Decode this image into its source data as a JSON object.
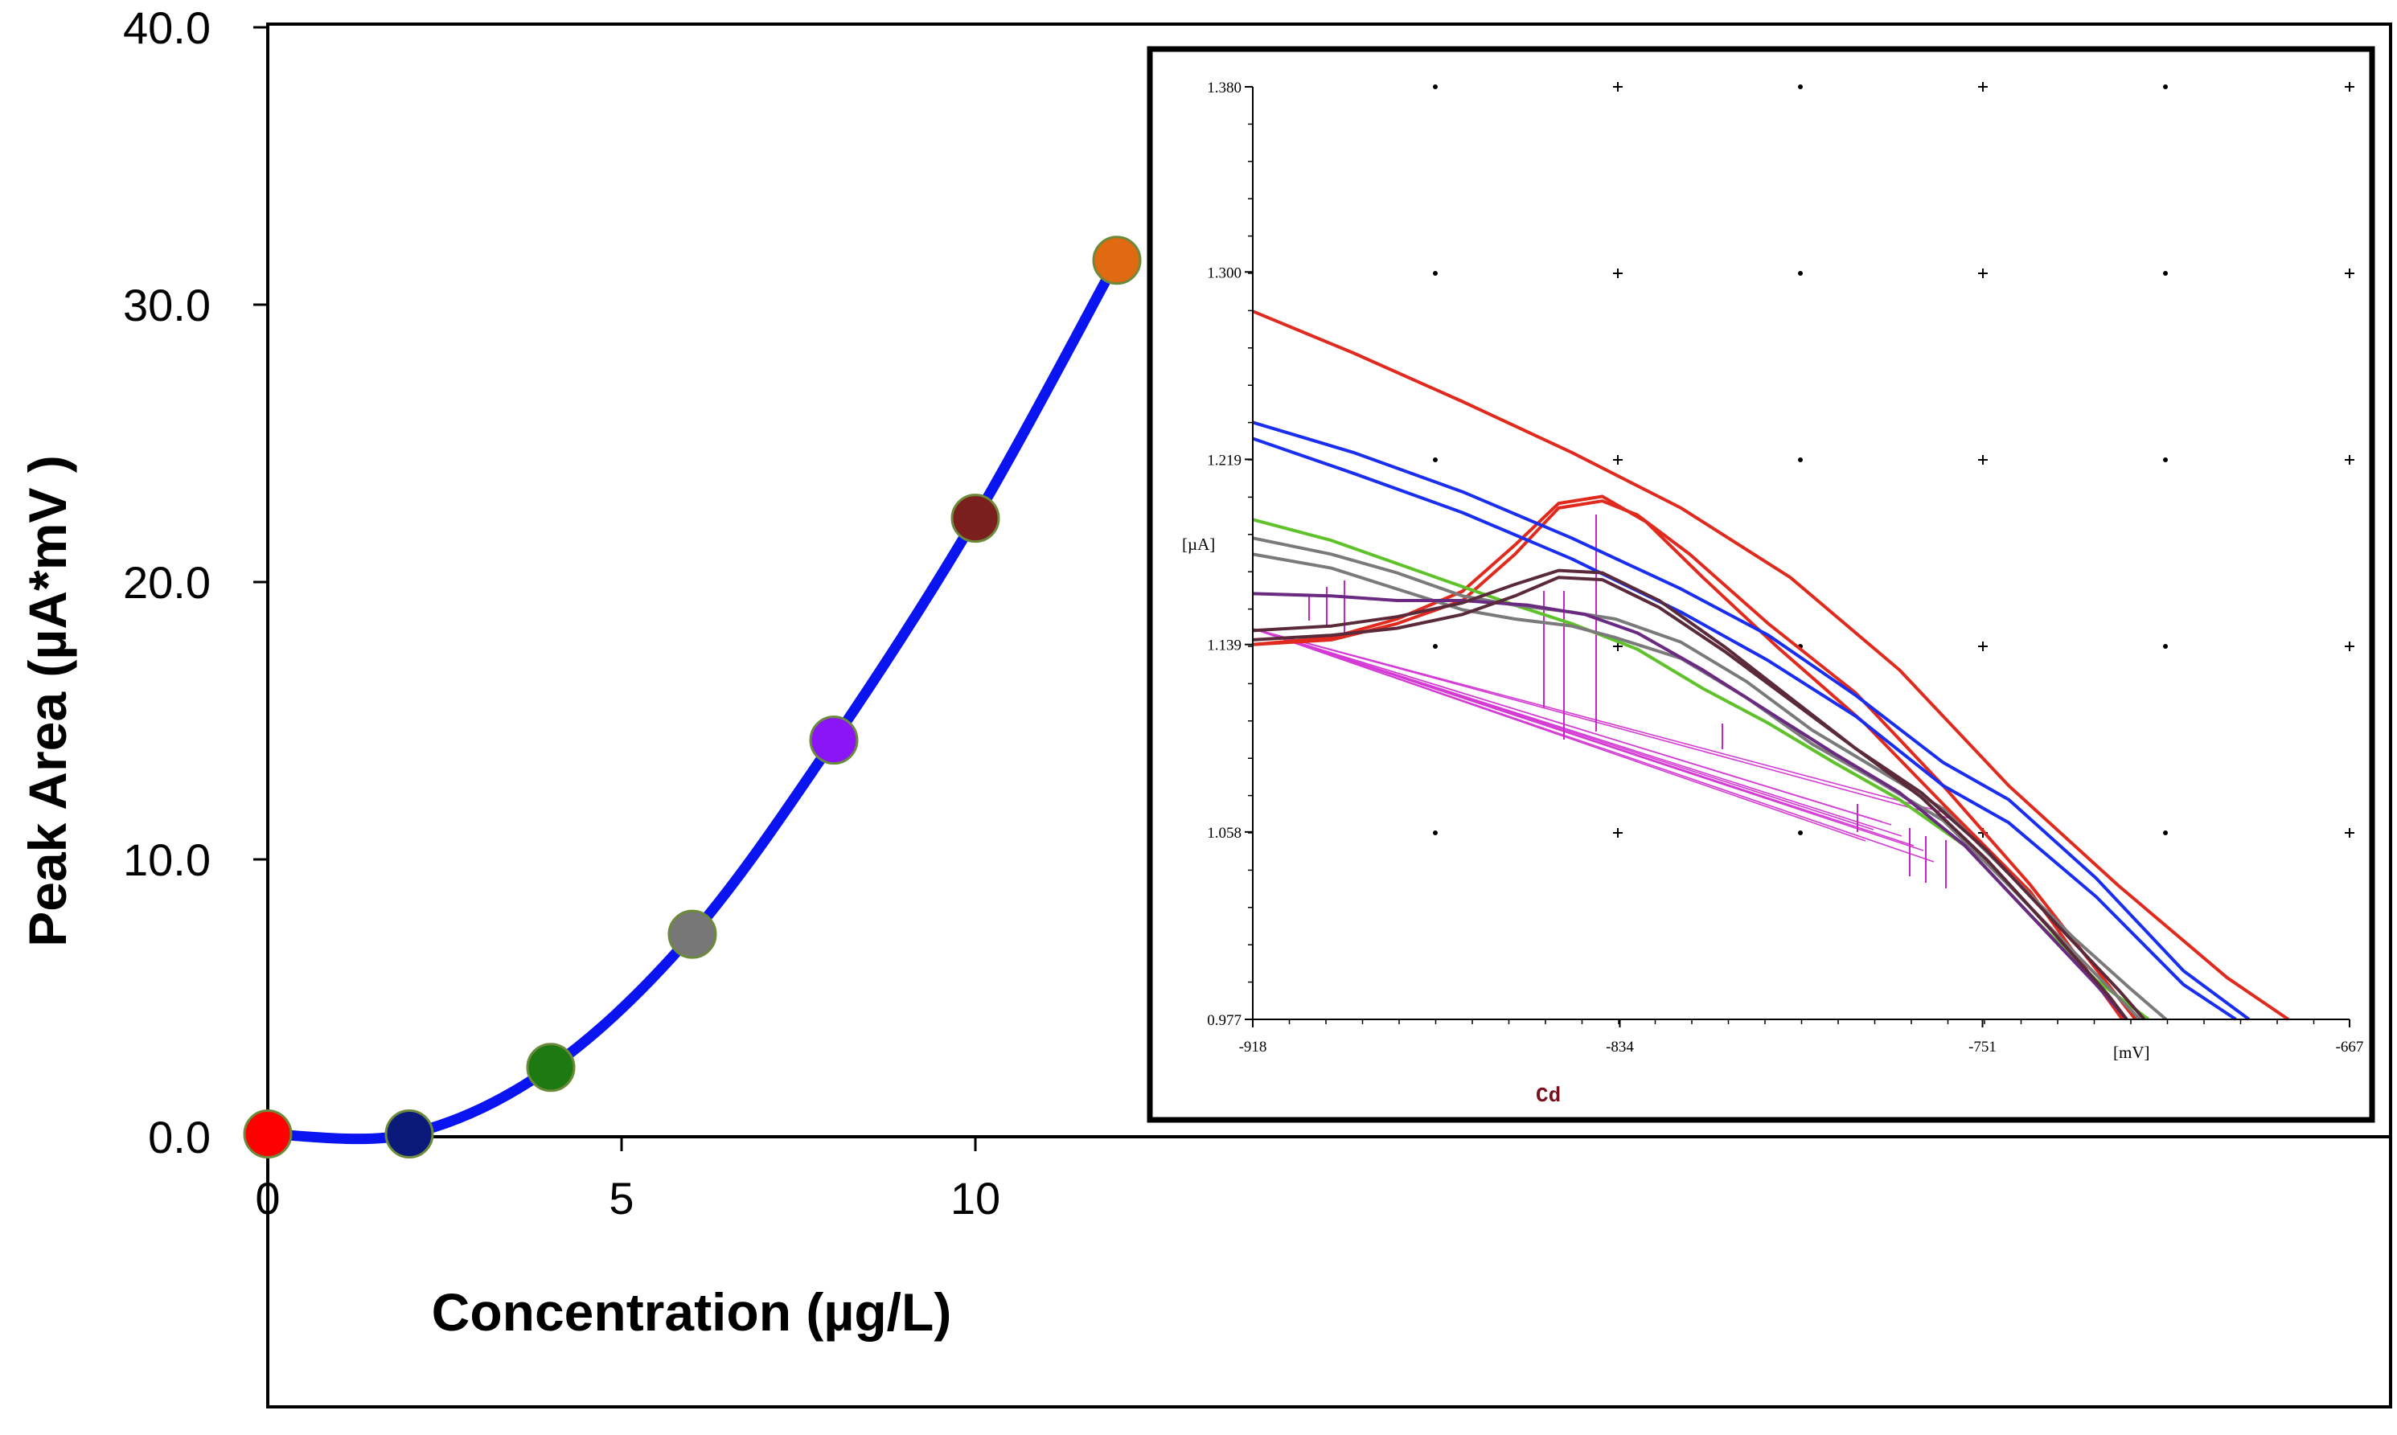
{
  "chart_data": [
    {
      "type": "line",
      "title": "",
      "xlabel": "Concentration (µg/L)",
      "ylabel": "Peak Area (µA*mV )",
      "xlim": [
        0,
        25
      ],
      "ylim": [
        0,
        40
      ],
      "x_ticks": [
        "0",
        "5",
        "10"
      ],
      "y_ticks": [
        "0.0",
        "10.0",
        "20.0",
        "30.0",
        "40.0"
      ],
      "grid": false,
      "legend": "none",
      "line_color": "#0a14f0",
      "points": [
        {
          "x": 0,
          "y": 0.1,
          "color": "#ff0000"
        },
        {
          "x": 2,
          "y": 0.1,
          "color": "#0b1a7a"
        },
        {
          "x": 4,
          "y": 2.5,
          "color": "#1d7a12"
        },
        {
          "x": 6,
          "y": 7.3,
          "color": "#777777"
        },
        {
          "x": 8,
          "y": 14.3,
          "color": "#8a16f7"
        },
        {
          "x": 10,
          "y": 22.3,
          "color": "#7b1e1e"
        },
        {
          "x": 12,
          "y": 31.6,
          "color": "#e06a12"
        }
      ]
    },
    {
      "type": "line",
      "title": "",
      "xlabel": "[mV]",
      "ylabel": "[µA]",
      "xlim": [
        -918,
        -667
      ],
      "ylim": [
        0.977,
        1.38
      ],
      "x_ticks": [
        "-918",
        "-834",
        "-751",
        "-667"
      ],
      "y_ticks": [
        "0.977",
        "1.058",
        "1.139",
        "1.219",
        "1.300",
        "1.380"
      ],
      "annotation": "Cd",
      "grid": true,
      "series": [
        {
          "color": "#e02a1e",
          "values": [
            [
              -918,
              1.283
            ],
            [
              -895,
              1.265
            ],
            [
              -870,
              1.244
            ],
            [
              -845,
              1.222
            ],
            [
              -820,
              1.198
            ],
            [
              -795,
              1.168
            ],
            [
              -770,
              1.128
            ],
            [
              -745,
              1.078
            ],
            [
              -720,
              1.035
            ],
            [
              -695,
              0.995
            ],
            [
              -681,
              0.977
            ]
          ]
        },
        {
          "color": "#e02a1e",
          "values": [
            [
              -918,
              1.139
            ],
            [
              -900,
              1.141
            ],
            [
              -885,
              1.148
            ],
            [
              -870,
              1.158
            ],
            [
              -858,
              1.178
            ],
            [
              -848,
              1.198
            ],
            [
              -838,
              1.201
            ],
            [
              -830,
              1.195
            ],
            [
              -818,
              1.178
            ],
            [
              -800,
              1.148
            ],
            [
              -780,
              1.118
            ],
            [
              -760,
              1.078
            ],
            [
              -740,
              1.035
            ],
            [
              -716,
              0.977
            ]
          ]
        },
        {
          "color": "#e02a1e",
          "values": [
            [
              -918,
              1.139
            ],
            [
              -900,
              1.142
            ],
            [
              -885,
              1.15
            ],
            [
              -870,
              1.162
            ],
            [
              -858,
              1.182
            ],
            [
              -848,
              1.2
            ],
            [
              -838,
              1.203
            ],
            [
              -828,
              1.192
            ],
            [
              -815,
              1.168
            ],
            [
              -798,
              1.138
            ],
            [
              -778,
              1.105
            ],
            [
              -760,
              1.07
            ],
            [
              -740,
              1.032
            ],
            [
              -719,
              0.977
            ]
          ]
        },
        {
          "color": "#1a2ef0",
          "values": [
            [
              -918,
              1.235
            ],
            [
              -895,
              1.222
            ],
            [
              -870,
              1.205
            ],
            [
              -845,
              1.185
            ],
            [
              -820,
              1.163
            ],
            [
              -800,
              1.143
            ],
            [
              -780,
              1.117
            ],
            [
              -760,
              1.088
            ],
            [
              -745,
              1.072
            ],
            [
              -725,
              1.038
            ],
            [
              -705,
              0.998
            ],
            [
              -690,
              0.977
            ]
          ]
        },
        {
          "color": "#1a2ef0",
          "values": [
            [
              -918,
              1.228
            ],
            [
              -895,
              1.213
            ],
            [
              -870,
              1.196
            ],
            [
              -845,
              1.176
            ],
            [
              -820,
              1.153
            ],
            [
              -800,
              1.132
            ],
            [
              -780,
              1.108
            ],
            [
              -760,
              1.078
            ],
            [
              -745,
              1.062
            ],
            [
              -725,
              1.03
            ],
            [
              -705,
              0.992
            ],
            [
              -693,
              0.977
            ]
          ]
        },
        {
          "color": "#5fc22a",
          "values": [
            [
              -918,
              1.193
            ],
            [
              -900,
              1.184
            ],
            [
              -885,
              1.174
            ],
            [
              -870,
              1.164
            ],
            [
              -858,
              1.156
            ],
            [
              -845,
              1.148
            ],
            [
              -830,
              1.137
            ],
            [
              -815,
              1.12
            ],
            [
              -800,
              1.105
            ],
            [
              -785,
              1.088
            ],
            [
              -770,
              1.072
            ],
            [
              -755,
              1.052
            ],
            [
              -740,
              1.022
            ],
            [
              -725,
              0.994
            ],
            [
              -713,
              0.977
            ]
          ]
        },
        {
          "color": "#7a7a7a",
          "values": [
            [
              -918,
              1.185
            ],
            [
              -900,
              1.178
            ],
            [
              -885,
              1.17
            ],
            [
              -870,
              1.16
            ],
            [
              -858,
              1.156
            ],
            [
              -845,
              1.153
            ],
            [
              -835,
              1.15
            ],
            [
              -820,
              1.14
            ],
            [
              -805,
              1.123
            ],
            [
              -790,
              1.102
            ],
            [
              -775,
              1.085
            ],
            [
              -760,
              1.068
            ],
            [
              -745,
              1.04
            ],
            [
              -730,
              1.012
            ],
            [
              -717,
              0.99
            ],
            [
              -709,
              0.977
            ]
          ]
        },
        {
          "color": "#7a7a7a",
          "values": [
            [
              -918,
              1.178
            ],
            [
              -900,
              1.172
            ],
            [
              -885,
              1.163
            ],
            [
              -870,
              1.154
            ],
            [
              -858,
              1.15
            ],
            [
              -845,
              1.147
            ],
            [
              -835,
              1.142
            ],
            [
              -820,
              1.133
            ],
            [
              -805,
              1.116
            ],
            [
              -790,
              1.096
            ],
            [
              -775,
              1.08
            ],
            [
              -760,
              1.063
            ],
            [
              -745,
              1.035
            ],
            [
              -730,
              1.006
            ],
            [
              -715,
              0.977
            ]
          ]
        },
        {
          "color": "#6a2a82",
          "values": [
            [
              -918,
              1.161
            ],
            [
              -900,
              1.16
            ],
            [
              -885,
              1.158
            ],
            [
              -870,
              1.158
            ],
            [
              -855,
              1.156
            ],
            [
              -842,
              1.152
            ],
            [
              -830,
              1.144
            ],
            [
              -815,
              1.128
            ],
            [
              -800,
              1.11
            ],
            [
              -785,
              1.092
            ],
            [
              -770,
              1.075
            ],
            [
              -755,
              1.052
            ],
            [
              -740,
              1.022
            ],
            [
              -725,
              0.992
            ],
            [
              -718,
              0.977
            ]
          ]
        },
        {
          "color": "#5a2a3a",
          "values": [
            [
              -918,
              1.141
            ],
            [
              -900,
              1.143
            ],
            [
              -885,
              1.146
            ],
            [
              -870,
              1.152
            ],
            [
              -858,
              1.16
            ],
            [
              -848,
              1.168
            ],
            [
              -838,
              1.167
            ],
            [
              -825,
              1.155
            ],
            [
              -810,
              1.136
            ],
            [
              -795,
              1.115
            ],
            [
              -780,
              1.094
            ],
            [
              -765,
              1.075
            ],
            [
              -750,
              1.05
            ],
            [
              -735,
              1.02
            ],
            [
              -720,
              0.99
            ],
            [
              -714,
              0.977
            ]
          ]
        },
        {
          "color": "#5a2a3a",
          "values": [
            [
              -918,
              1.145
            ],
            [
              -900,
              1.147
            ],
            [
              -885,
              1.151
            ],
            [
              -870,
              1.157
            ],
            [
              -858,
              1.165
            ],
            [
              -848,
              1.171
            ],
            [
              -838,
              1.17
            ],
            [
              -825,
              1.158
            ],
            [
              -810,
              1.138
            ],
            [
              -795,
              1.116
            ],
            [
              -780,
              1.094
            ],
            [
              -765,
              1.073
            ],
            [
              -750,
              1.046
            ],
            [
              -735,
              1.015
            ],
            [
              -722,
              0.987
            ],
            [
              -718,
              0.977
            ]
          ]
        }
      ]
    }
  ]
}
